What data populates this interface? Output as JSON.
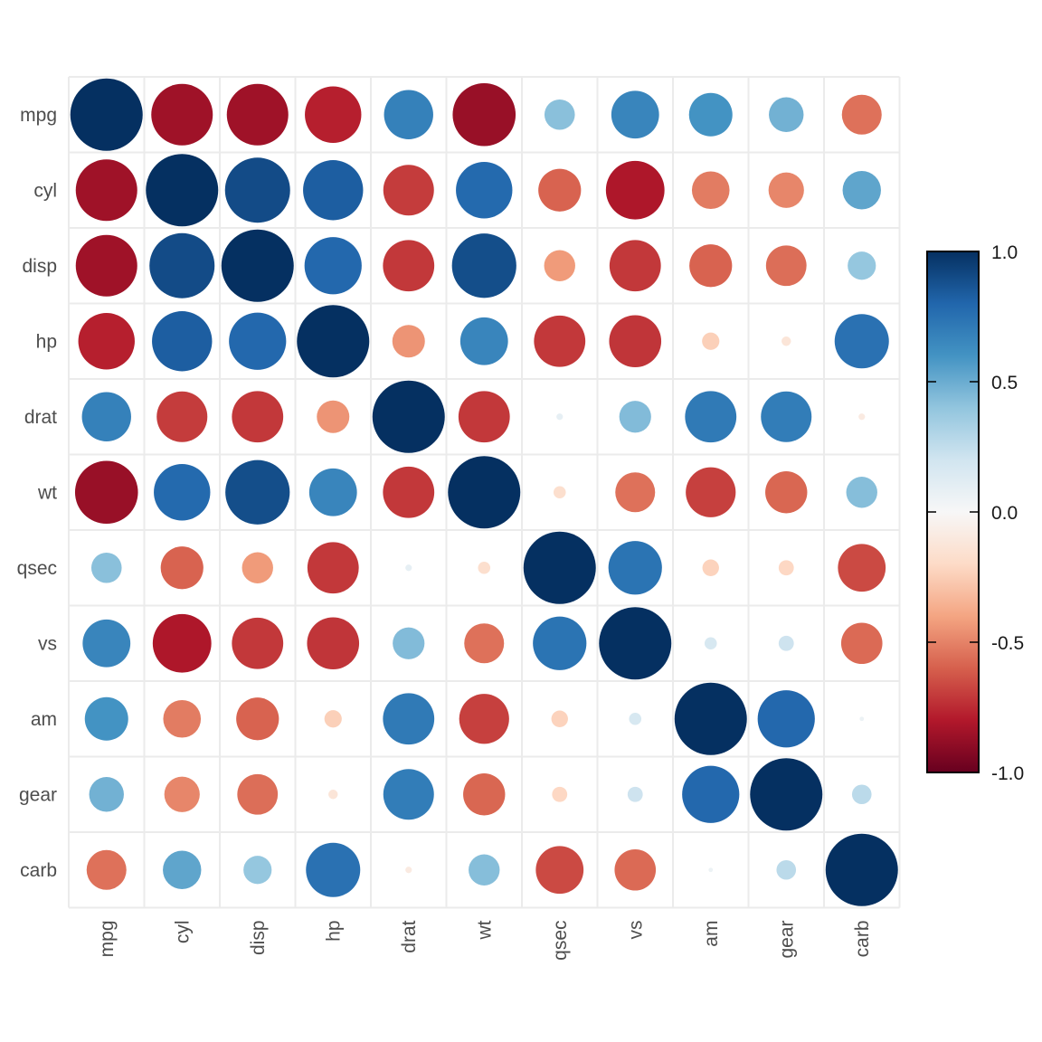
{
  "chart_data": {
    "type": "heatmap",
    "style": "correlation-circle-matrix",
    "variables": [
      "mpg",
      "cyl",
      "disp",
      "hp",
      "drat",
      "wt",
      "qsec",
      "vs",
      "am",
      "gear",
      "carb"
    ],
    "matrix": [
      [
        1.0,
        -0.85,
        -0.85,
        -0.78,
        0.68,
        -0.87,
        0.42,
        0.66,
        0.6,
        0.48,
        -0.55
      ],
      [
        -0.85,
        1.0,
        0.9,
        0.83,
        -0.7,
        0.78,
        -0.59,
        -0.81,
        -0.52,
        -0.49,
        0.53
      ],
      [
        -0.85,
        0.9,
        1.0,
        0.79,
        -0.71,
        0.89,
        -0.43,
        -0.71,
        -0.59,
        -0.56,
        0.39
      ],
      [
        -0.78,
        0.83,
        0.79,
        1.0,
        -0.45,
        0.66,
        -0.71,
        -0.72,
        -0.24,
        -0.13,
        0.75
      ],
      [
        0.68,
        -0.7,
        -0.71,
        -0.45,
        1.0,
        -0.71,
        0.09,
        0.44,
        0.71,
        0.7,
        -0.09
      ],
      [
        -0.87,
        0.78,
        0.89,
        0.66,
        -0.71,
        1.0,
        -0.17,
        -0.55,
        -0.69,
        -0.58,
        0.43
      ],
      [
        0.42,
        -0.59,
        -0.43,
        -0.71,
        0.09,
        -0.17,
        1.0,
        0.74,
        -0.23,
        -0.21,
        -0.66
      ],
      [
        0.66,
        -0.81,
        -0.71,
        -0.72,
        0.44,
        -0.55,
        0.74,
        1.0,
        0.17,
        0.21,
        -0.57
      ],
      [
        0.6,
        -0.52,
        -0.59,
        -0.24,
        0.71,
        -0.69,
        -0.23,
        0.17,
        1.0,
        0.79,
        0.06
      ],
      [
        0.48,
        -0.49,
        -0.56,
        -0.13,
        0.7,
        -0.58,
        -0.21,
        0.21,
        0.79,
        1.0,
        0.27
      ],
      [
        -0.55,
        0.53,
        0.39,
        0.75,
        -0.09,
        0.43,
        -0.66,
        -0.57,
        0.06,
        0.27,
        1.0
      ]
    ],
    "value_range": [
      -1,
      1
    ],
    "legend": {
      "placement": "right",
      "ticks": [
        1.0,
        0.5,
        0.0,
        -0.5,
        -1.0
      ],
      "tick_labels": [
        "1.0",
        "0.5",
        "0.0",
        "-0.5",
        "-1.0"
      ]
    },
    "colors": {
      "scale": [
        "#67001f",
        "#b2182b",
        "#d6604d",
        "#f4a582",
        "#fddbc7",
        "#f7f7f7",
        "#d1e5f0",
        "#92c5de",
        "#4393c3",
        "#2166ac",
        "#053061"
      ],
      "grid": "#ebebeb"
    },
    "grid": true,
    "title": "",
    "xlabel": "",
    "ylabel": ""
  }
}
